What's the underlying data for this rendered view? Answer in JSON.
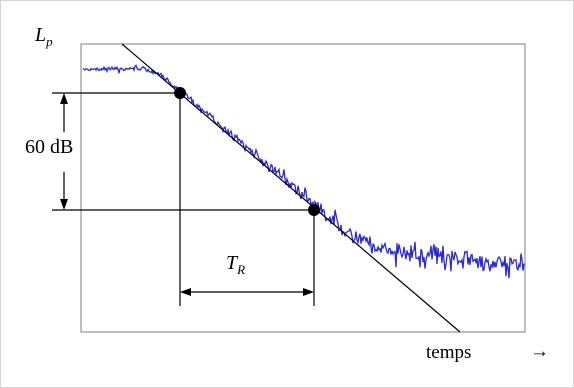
{
  "labels": {
    "y_axis_main": "L",
    "y_axis_sub": "p",
    "db_range": "60 dB",
    "tr_main": "T",
    "tr_sub": "R",
    "x_axis": "temps",
    "x_arrow": "→"
  },
  "colors": {
    "signal": "#2a2ad6",
    "lines": "#000000",
    "frame": "#c0c0c0"
  },
  "icons": {
    "start_marker": "filled-circle",
    "end_marker": "filled-circle"
  }
}
